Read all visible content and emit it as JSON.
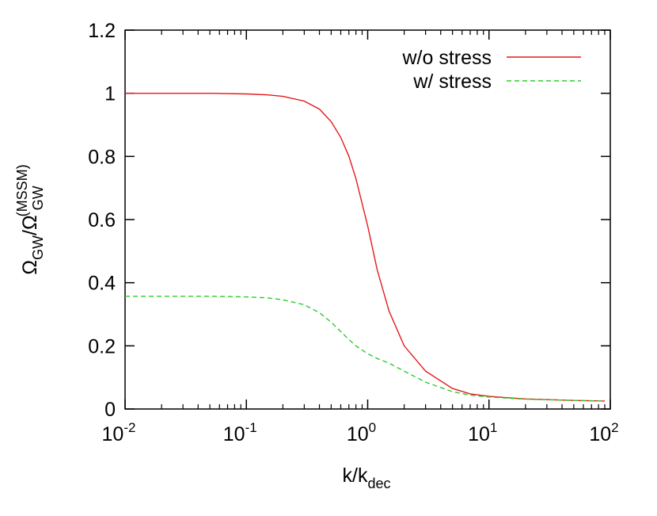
{
  "chart_data": {
    "type": "line",
    "xlabel": {
      "main": "k/k",
      "sub": "dec"
    },
    "ylabel": {
      "main": "Ω",
      "sub1": "GW",
      "slash": "/Ω",
      "sup2": "(MSSM)",
      "sub2": "GW"
    },
    "x_scale": "log",
    "xlim": [
      0.01,
      100
    ],
    "ylim": [
      0,
      1.2
    ],
    "x_ticks": [
      {
        "value": 0.01,
        "base": "10",
        "exp": "-2"
      },
      {
        "value": 0.1,
        "base": "10",
        "exp": "-1"
      },
      {
        "value": 1,
        "base": "10",
        "exp": "0"
      },
      {
        "value": 10,
        "base": "10",
        "exp": "1"
      },
      {
        "value": 100,
        "base": "10",
        "exp": "2"
      }
    ],
    "y_ticks": [
      {
        "value": 0,
        "label": "0"
      },
      {
        "value": 0.2,
        "label": "0.2"
      },
      {
        "value": 0.4,
        "label": "0.4"
      },
      {
        "value": 0.6,
        "label": "0.6"
      },
      {
        "value": 0.8,
        "label": "0.8"
      },
      {
        "value": 1.0,
        "label": "1"
      },
      {
        "value": 1.2,
        "label": "1.2"
      }
    ],
    "grid": false,
    "legend_position": "top-right",
    "series": [
      {
        "name": "w/o stress",
        "color": "#e41a1c",
        "dash": "solid",
        "x": [
          0.01,
          0.05,
          0.1,
          0.15,
          0.2,
          0.3,
          0.4,
          0.5,
          0.6,
          0.7,
          0.8,
          1.0,
          1.2,
          1.5,
          2.0,
          3.0,
          5.0,
          7.0,
          10,
          20,
          50,
          90
        ],
        "y": [
          1.0,
          1.0,
          0.998,
          0.995,
          0.99,
          0.975,
          0.95,
          0.91,
          0.86,
          0.8,
          0.73,
          0.58,
          0.44,
          0.31,
          0.2,
          0.12,
          0.065,
          0.048,
          0.04,
          0.032,
          0.027,
          0.025
        ]
      },
      {
        "name": "w/ stress",
        "color": "#2ecc2e",
        "dash": "dashed",
        "x": [
          0.01,
          0.05,
          0.1,
          0.15,
          0.2,
          0.3,
          0.4,
          0.5,
          0.6,
          0.7,
          0.8,
          1.0,
          1.2,
          1.5,
          2.0,
          3.0,
          5.0,
          7.0,
          10,
          20,
          50,
          90
        ],
        "y": [
          0.357,
          0.357,
          0.355,
          0.352,
          0.346,
          0.33,
          0.305,
          0.275,
          0.245,
          0.22,
          0.2,
          0.175,
          0.16,
          0.145,
          0.12,
          0.085,
          0.055,
          0.044,
          0.038,
          0.031,
          0.027,
          0.025
        ]
      }
    ]
  }
}
